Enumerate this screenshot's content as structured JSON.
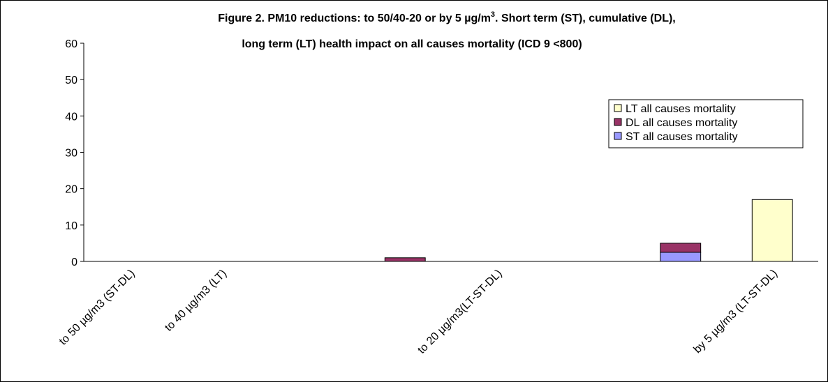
{
  "chart_data": {
    "type": "stacked_bar",
    "title": [
      "Figure 2. PM10 reductions: to 50/40-20 or by 5 µg/m",
      "3",
      ". Short term (ST), cumulative (DL),",
      "long term (LT) health impact on all causes mortality (ICD 9 <800)"
    ],
    "categories": [
      "to 50 µg/m3  (ST-DL)",
      "to 40 µg/m3  (LT)",
      null,
      null,
      "to 20 µg/m3(LT-ST-DL)",
      null,
      null,
      "by 5 µg/m3 (LT-ST-DL)"
    ],
    "series": [
      {
        "name": "ST all causes mortality",
        "color": "#9999ff",
        "values": [
          null,
          null,
          null,
          null,
          null,
          null,
          2.5,
          null
        ]
      },
      {
        "name": "DL all causes mortality",
        "color": "#993366",
        "values": [
          null,
          null,
          null,
          1,
          null,
          null,
          2.5,
          null
        ]
      },
      {
        "name": "LT all causes mortality",
        "color": "#ffffcc",
        "values": [
          null,
          null,
          null,
          null,
          null,
          null,
          null,
          17
        ]
      }
    ],
    "ylim": [
      0,
      60
    ],
    "yticks": [
      0,
      10,
      20,
      30,
      40,
      50,
      60
    ],
    "grid": false,
    "legend": "right"
  }
}
